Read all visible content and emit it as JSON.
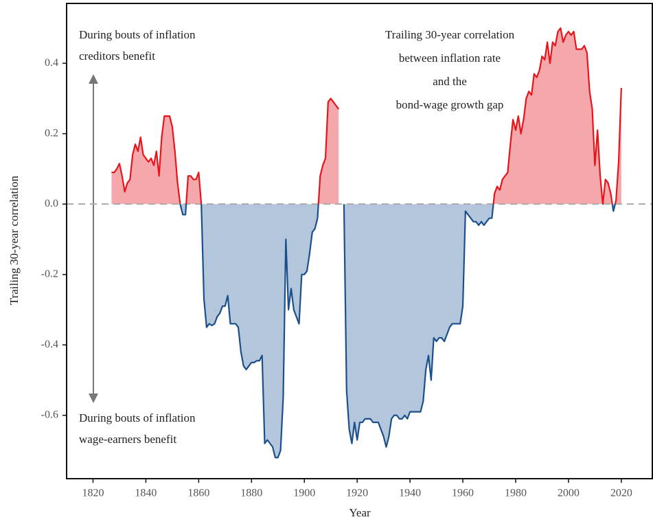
{
  "chart_data": {
    "type": "line",
    "x_label": "Year",
    "y_label": "Trailing 30-year correlation",
    "annotations": [
      [
        "During bouts of inflation",
        "creditors benefit"
      ],
      [
        "During bouts of inflation",
        "wage-earners benefit"
      ],
      [
        "Trailing 30-year correlation",
        "between inflation rate",
        "and the",
        "bond-wage growth gap"
      ]
    ],
    "positive_color": "#e8141b",
    "positive_fill": "#f5a8ac",
    "negative_color": "#1a4f8c",
    "negative_fill": "#b4c6dc",
    "xlim": [
      1810,
      2032
    ],
    "xticks": [
      1820,
      1840,
      1860,
      1880,
      1900,
      1920,
      1940,
      1960,
      1980,
      2000,
      2020
    ],
    "ylim": [
      -0.78,
      0.57
    ],
    "yticks": [
      -0.6,
      -0.4,
      -0.2,
      {
        "value": 0,
        "label": "0.0"
      },
      0.2,
      0.4
    ],
    "x": [
      1827,
      1828,
      1829,
      1830,
      1831,
      1832,
      1833,
      1834,
      1835,
      1836,
      1837,
      1838,
      1839,
      1840,
      1841,
      1842,
      1843,
      1844,
      1845,
      1846,
      1847,
      1848,
      1849,
      1850,
      1851,
      1852,
      1853,
      1854,
      1855,
      1856,
      1857,
      1858,
      1859,
      1860,
      1861,
      1862,
      1863,
      1864,
      1865,
      1866,
      1867,
      1868,
      1869,
      1870,
      1871,
      1872,
      1873,
      1874,
      1875,
      1876,
      1877,
      1878,
      1879,
      1880,
      1881,
      1882,
      1883,
      1884,
      1885,
      1886,
      1887,
      1888,
      1889,
      1890,
      1891,
      1892,
      1893,
      1894,
      1895,
      1896,
      1897,
      1898,
      1899,
      1900,
      1901,
      1902,
      1903,
      1904,
      1905,
      1906,
      1907,
      1908,
      1909,
      1910,
      1911,
      1912,
      1913,
      1914,
      1915,
      1916,
      1917,
      1918,
      1919,
      1920,
      1921,
      1922,
      1923,
      1924,
      1925,
      1926,
      1927,
      1928,
      1929,
      1930,
      1931,
      1932,
      1933,
      1934,
      1935,
      1936,
      1937,
      1938,
      1939,
      1940,
      1941,
      1942,
      1943,
      1944,
      1945,
      1946,
      1947,
      1948,
      1949,
      1950,
      1951,
      1952,
      1953,
      1954,
      1955,
      1956,
      1957,
      1958,
      1959,
      1960,
      1961,
      1962,
      1963,
      1964,
      1965,
      1966,
      1967,
      1968,
      1969,
      1970,
      1971,
      1972,
      1973,
      1974,
      1975,
      1976,
      1977,
      1978,
      1979,
      1980,
      1981,
      1982,
      1983,
      1984,
      1985,
      1986,
      1987,
      1988,
      1989,
      1990,
      1991,
      1992,
      1993,
      1994,
      1995,
      1996,
      1997,
      1998,
      1999,
      2000,
      2001,
      2002,
      2003,
      2004,
      2005,
      2006,
      2007,
      2008,
      2009,
      2010,
      2011,
      2012,
      2013,
      2014,
      2015,
      2016,
      2017,
      2018,
      2019,
      2020
    ],
    "values": [
      0.09,
      0.09,
      0.1,
      0.115,
      0.08,
      0.035,
      0.06,
      0.07,
      0.14,
      0.17,
      0.15,
      0.19,
      0.14,
      0.13,
      0.12,
      0.13,
      0.11,
      0.15,
      0.08,
      0.19,
      0.25,
      0.25,
      0.25,
      0.22,
      0.15,
      0.06,
      0.0,
      -0.03,
      -0.03,
      0.08,
      0.08,
      0.07,
      0.07,
      0.09,
      0.0,
      -0.27,
      -0.35,
      -0.34,
      -0.345,
      -0.34,
      -0.32,
      -0.31,
      -0.29,
      -0.29,
      -0.26,
      -0.34,
      -0.34,
      -0.34,
      -0.35,
      -0.42,
      -0.46,
      -0.47,
      -0.46,
      -0.45,
      -0.45,
      -0.445,
      -0.445,
      -0.43,
      -0.68,
      -0.67,
      -0.68,
      -0.69,
      -0.72,
      -0.72,
      -0.7,
      -0.55,
      -0.1,
      -0.3,
      -0.24,
      -0.3,
      -0.32,
      -0.34,
      -0.2,
      -0.2,
      -0.19,
      -0.14,
      -0.08,
      -0.07,
      -0.04,
      0.08,
      0.11,
      0.13,
      0.29,
      0.3,
      0.29,
      0.28,
      0.27,
      null,
      0.0,
      -0.53,
      -0.64,
      -0.68,
      -0.62,
      -0.67,
      -0.62,
      -0.62,
      -0.61,
      -0.61,
      -0.61,
      -0.62,
      -0.62,
      -0.62,
      -0.64,
      -0.66,
      -0.69,
      -0.66,
      -0.61,
      -0.6,
      -0.6,
      -0.61,
      -0.61,
      -0.6,
      -0.61,
      -0.59,
      -0.59,
      -0.59,
      -0.59,
      -0.59,
      -0.56,
      -0.47,
      -0.43,
      -0.5,
      -0.38,
      -0.39,
      -0.38,
      -0.38,
      -0.39,
      -0.37,
      -0.35,
      -0.34,
      -0.34,
      -0.34,
      -0.34,
      -0.29,
      -0.02,
      -0.03,
      -0.04,
      -0.05,
      -0.05,
      -0.06,
      -0.05,
      -0.06,
      -0.05,
      -0.04,
      -0.04,
      0.03,
      0.05,
      0.04,
      0.07,
      0.08,
      0.09,
      0.17,
      0.24,
      0.21,
      0.25,
      0.2,
      0.24,
      0.3,
      0.32,
      0.31,
      0.37,
      0.36,
      0.38,
      0.42,
      0.41,
      0.46,
      0.4,
      0.46,
      0.45,
      0.49,
      0.5,
      0.46,
      0.48,
      0.49,
      0.48,
      0.49,
      0.44,
      0.44,
      0.44,
      0.45,
      0.43,
      0.32,
      0.27,
      0.11,
      0.21,
      0.08,
      0.0,
      0.07,
      0.06,
      0.03,
      -0.02,
      0.01,
      0.12,
      0.33
    ]
  }
}
